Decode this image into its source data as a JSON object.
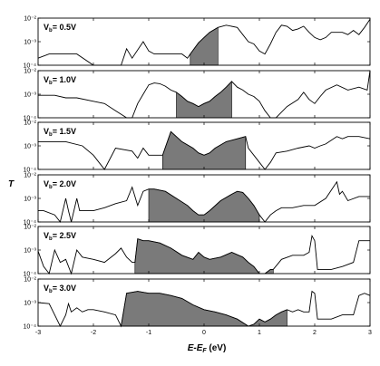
{
  "colors": {
    "fill": "#7a7a7a",
    "line": "#000000",
    "frame": "#000000"
  },
  "chart_data": {
    "type": "area",
    "xlabel": "E-E_F (eV)",
    "ylabel": "T",
    "xlim": [
      -3,
      3
    ],
    "yscale": "log",
    "ylim": [
      0.0001,
      0.01
    ],
    "ytick_labels": [
      "10⁻²",
      "10⁻³",
      "10⁻⁴"
    ],
    "xtick_labels": [
      "-3",
      "-2",
      "-1",
      "0",
      "1",
      "2",
      "3"
    ],
    "xticks": [
      -3,
      -2,
      -1,
      0,
      1,
      2,
      3
    ],
    "panels": [
      {
        "label": "V_b= 0.5V",
        "window": [
          -0.25,
          0.25
        ],
        "x": [
          -3,
          -2.8,
          -2.5,
          -2.3,
          -2.0,
          -1.9,
          -1.5,
          -1.4,
          -1.3,
          -1.1,
          -1.0,
          -0.9,
          -0.6,
          -0.4,
          -0.3,
          -0.25,
          -0.1,
          0,
          0.1,
          0.25,
          0.4,
          0.6,
          0.7,
          0.8,
          0.9,
          1.0,
          1.1,
          1.2,
          1.3,
          1.4,
          1.5,
          1.6,
          1.7,
          1.8,
          1.9,
          2.0,
          2.1,
          2.2,
          2.3,
          2.5,
          2.6,
          2.7,
          2.8,
          2.9,
          3.0
        ],
        "y": [
          0.0002,
          0.0003,
          0.0003,
          0.0003,
          0.0001,
          0.0001,
          0.0001,
          0.0005,
          0.0002,
          0.001,
          0.0004,
          0.0003,
          0.0003,
          0.0003,
          0.0002,
          0.0003,
          0.0009,
          0.0015,
          0.0025,
          0.004,
          0.005,
          0.004,
          0.002,
          0.001,
          0.0008,
          0.0004,
          0.0003,
          0.0008,
          0.0025,
          0.005,
          0.0045,
          0.003,
          0.0035,
          0.0045,
          0.0025,
          0.0015,
          0.0012,
          0.0015,
          0.0025,
          0.0025,
          0.002,
          0.003,
          0.002,
          0.004,
          0.009
        ]
      },
      {
        "label": "V_b= 1.0V",
        "window": [
          -0.5,
          0.5
        ],
        "x": [
          -3,
          -2.7,
          -2.5,
          -2.3,
          -2.0,
          -1.8,
          -1.6,
          -1.4,
          -1.3,
          -1.2,
          -1.1,
          -1.0,
          -0.9,
          -0.8,
          -0.7,
          -0.6,
          -0.5,
          -0.4,
          -0.3,
          -0.2,
          -0.1,
          0,
          0.1,
          0.2,
          0.3,
          0.4,
          0.5,
          0.6,
          0.7,
          0.8,
          0.9,
          1.0,
          1.1,
          1.2,
          1.3,
          1.5,
          1.7,
          1.8,
          1.9,
          2.0,
          2.1,
          2.2,
          2.4,
          2.6,
          2.8,
          2.95,
          3.0
        ],
        "y": [
          0.0009,
          0.0009,
          0.0007,
          0.0007,
          0.0005,
          0.0004,
          0.0002,
          0.0001,
          0.0001,
          0.0004,
          0.001,
          0.0025,
          0.003,
          0.0028,
          0.0022,
          0.0015,
          0.0012,
          0.0008,
          0.0005,
          0.0004,
          0.0003,
          0.0004,
          0.0005,
          0.0008,
          0.0012,
          0.002,
          0.0035,
          0.002,
          0.0015,
          0.001,
          0.0008,
          0.0005,
          0.0002,
          0.0001,
          0.0001,
          0.0003,
          0.0006,
          0.0012,
          0.0006,
          0.0004,
          0.0008,
          0.0015,
          0.0025,
          0.0015,
          0.002,
          0.0015,
          0.01
        ]
      },
      {
        "label": "V_b= 1.5V",
        "window": [
          -0.75,
          0.75
        ],
        "x": [
          -3,
          -2.8,
          -2.5,
          -2.2,
          -2.0,
          -1.9,
          -1.8,
          -1.6,
          -1.3,
          -1.2,
          -1.1,
          -1.0,
          -0.9,
          -0.8,
          -0.75,
          -0.6,
          -0.4,
          -0.2,
          -0.1,
          0,
          0.1,
          0.2,
          0.4,
          0.6,
          0.75,
          0.8,
          0.9,
          1.0,
          1.1,
          1.2,
          1.3,
          1.5,
          1.7,
          1.9,
          2.0,
          2.1,
          2.2,
          2.4,
          2.5,
          2.6,
          2.8,
          3.0
        ],
        "y": [
          0.0015,
          0.0015,
          0.0015,
          0.001,
          0.0004,
          0.0002,
          0.0001,
          0.0008,
          0.0006,
          0.0003,
          0.0008,
          0.0004,
          0.0004,
          0.0004,
          0.0004,
          0.004,
          0.0015,
          0.0008,
          0.0005,
          0.0004,
          0.0005,
          0.0008,
          0.0015,
          0.002,
          0.0025,
          0.0008,
          0.0004,
          0.0002,
          0.0001,
          0.0002,
          0.0005,
          0.0006,
          0.0008,
          0.001,
          0.0008,
          0.001,
          0.0012,
          0.0025,
          0.002,
          0.0025,
          0.0025,
          0.002
        ]
      },
      {
        "label": "V_b= 2.0V",
        "window": [
          -1.0,
          1.0
        ],
        "x": [
          -3,
          -2.9,
          -2.7,
          -2.6,
          -2.5,
          -2.45,
          -2.4,
          -2.3,
          -2.25,
          -2.2,
          -2.1,
          -2.0,
          -1.8,
          -1.6,
          -1.4,
          -1.3,
          -1.2,
          -1.1,
          -1.0,
          -0.9,
          -0.7,
          -0.5,
          -0.3,
          -0.2,
          -0.1,
          0,
          0.1,
          0.3,
          0.5,
          0.6,
          0.7,
          0.8,
          0.9,
          1.0,
          1.1,
          1.2,
          1.3,
          1.4,
          1.6,
          1.8,
          2.0,
          2.2,
          2.4,
          2.45,
          2.5,
          2.6,
          2.8,
          3.0
        ],
        "y": [
          0.0003,
          0.0003,
          0.0002,
          0.0001,
          0.001,
          0.0003,
          0.0001,
          0.001,
          0.0003,
          0.0003,
          0.0003,
          0.0003,
          0.0004,
          0.0006,
          0.0008,
          0.003,
          0.0005,
          0.002,
          0.0025,
          0.0025,
          0.002,
          0.001,
          0.0005,
          0.0003,
          0.0002,
          0.0002,
          0.0003,
          0.0008,
          0.0015,
          0.002,
          0.0018,
          0.001,
          0.0005,
          0.0002,
          0.0001,
          0.0002,
          0.0003,
          0.0004,
          0.0004,
          0.0005,
          0.0005,
          0.001,
          0.005,
          0.0015,
          0.002,
          0.0008,
          0.0012,
          0.0012
        ]
      },
      {
        "label": "V_b= 2.5V",
        "window": [
          -1.25,
          1.25
        ],
        "x": [
          -3,
          -2.9,
          -2.8,
          -2.7,
          -2.6,
          -2.5,
          -2.4,
          -2.3,
          -2.2,
          -2.0,
          -1.8,
          -1.6,
          -1.5,
          -1.4,
          -1.3,
          -1.25,
          -1.2,
          -1.1,
          -1.0,
          -0.8,
          -0.6,
          -0.4,
          -0.2,
          -0.1,
          0,
          0.1,
          0.3,
          0.5,
          0.7,
          0.8,
          0.9,
          1.0,
          1.1,
          1.2,
          1.25,
          1.4,
          1.6,
          1.8,
          1.9,
          1.95,
          2.0,
          2.05,
          2.3,
          2.5,
          2.7,
          2.8,
          3.0
        ],
        "y": [
          0.0009,
          0.0002,
          0.0001,
          0.001,
          0.0003,
          0.0004,
          0.0001,
          0.001,
          0.0005,
          0.0004,
          0.0003,
          0.0007,
          0.0012,
          0.0005,
          0.0003,
          0.0003,
          0.003,
          0.0025,
          0.0025,
          0.002,
          0.0012,
          0.0006,
          0.0004,
          0.0008,
          0.0005,
          0.0004,
          0.0005,
          0.0008,
          0.0005,
          0.0003,
          0.0002,
          0.0001,
          0.0001,
          0.00015,
          0.00015,
          0.0004,
          0.0006,
          0.0006,
          0.0008,
          0.004,
          0.0025,
          0.00015,
          0.00015,
          0.0002,
          0.0003,
          0.0025,
          0.0025
        ]
      },
      {
        "label": "V_b= 3.0V",
        "window": [
          -1.5,
          1.5
        ],
        "x": [
          -3,
          -2.8,
          -2.7,
          -2.6,
          -2.5,
          -2.45,
          -2.4,
          -2.3,
          -2.2,
          -2.1,
          -2.0,
          -1.8,
          -1.6,
          -1.5,
          -1.4,
          -1.2,
          -1.0,
          -0.8,
          -0.6,
          -0.4,
          -0.2,
          0,
          0.2,
          0.4,
          0.6,
          0.8,
          0.9,
          1.0,
          1.1,
          1.2,
          1.3,
          1.4,
          1.5,
          1.6,
          1.7,
          1.8,
          1.9,
          1.95,
          2.0,
          2.05,
          2.3,
          2.5,
          2.7,
          2.8,
          2.9,
          3.0
        ],
        "y": [
          0.001,
          0.0009,
          0.0003,
          0.0001,
          0.0003,
          0.0009,
          0.0004,
          0.0006,
          0.0004,
          0.0005,
          0.0005,
          0.0004,
          0.0003,
          0.0001,
          0.0025,
          0.003,
          0.0025,
          0.0025,
          0.002,
          0.0015,
          0.0008,
          0.0005,
          0.0004,
          0.0003,
          0.0002,
          0.0001,
          0.00012,
          0.0002,
          0.00015,
          0.0002,
          0.0003,
          0.0004,
          0.0005,
          0.0004,
          0.0005,
          0.0004,
          0.0004,
          0.003,
          0.0025,
          0.0002,
          0.0002,
          0.0003,
          0.0003,
          0.002,
          0.0025,
          0.002
        ]
      }
    ]
  }
}
